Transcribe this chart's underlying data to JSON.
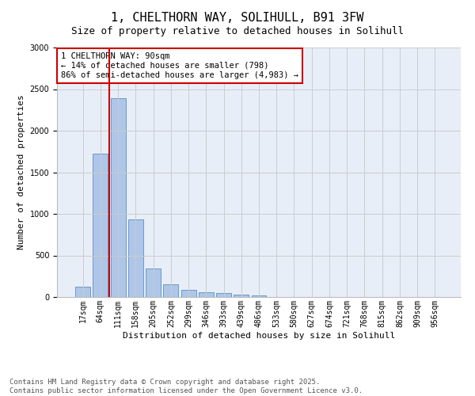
{
  "title_line1": "1, CHELTHORN WAY, SOLIHULL, B91 3FW",
  "title_line2": "Size of property relative to detached houses in Solihull",
  "xlabel": "Distribution of detached houses by size in Solihull",
  "ylabel": "Number of detached properties",
  "categories": [
    "17sqm",
    "64sqm",
    "111sqm",
    "158sqm",
    "205sqm",
    "252sqm",
    "299sqm",
    "346sqm",
    "393sqm",
    "439sqm",
    "486sqm",
    "533sqm",
    "580sqm",
    "627sqm",
    "674sqm",
    "721sqm",
    "768sqm",
    "815sqm",
    "862sqm",
    "909sqm",
    "956sqm"
  ],
  "values": [
    120,
    1720,
    2390,
    930,
    340,
    150,
    90,
    55,
    45,
    30,
    20,
    0,
    0,
    0,
    0,
    0,
    0,
    0,
    0,
    0,
    0
  ],
  "bar_color": "#aec6e8",
  "bar_edge_color": "#5a8fc2",
  "vline_color": "#cc0000",
  "vline_x": 1.5,
  "annotation_box_text": "1 CHELTHORN WAY: 90sqm\n← 14% of detached houses are smaller (798)\n86% of semi-detached houses are larger (4,983) →",
  "annotation_box_color": "#cc0000",
  "ylim": [
    0,
    3000
  ],
  "yticks": [
    0,
    500,
    1000,
    1500,
    2000,
    2500,
    3000
  ],
  "grid_color": "#cccccc",
  "background_color": "#e8eef8",
  "footnote": "Contains HM Land Registry data © Crown copyright and database right 2025.\nContains public sector information licensed under the Open Government Licence v3.0.",
  "footnote_fontsize": 6.5,
  "title_fontsize": 11,
  "subtitle_fontsize": 9,
  "axis_label_fontsize": 8,
  "tick_fontsize": 7,
  "annot_fontsize": 7.5
}
